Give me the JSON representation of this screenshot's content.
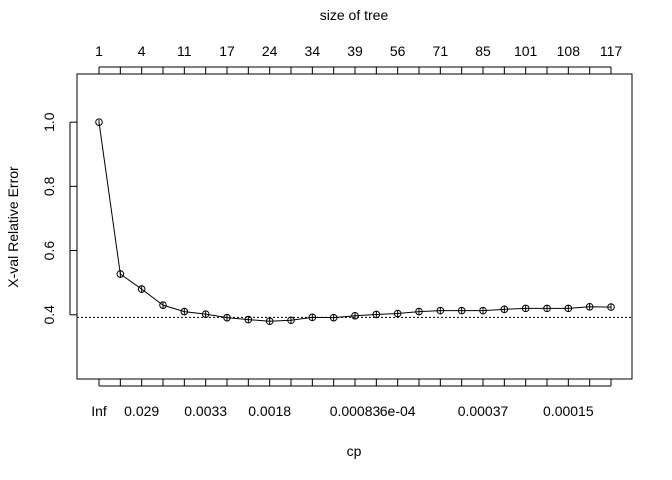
{
  "chart_data": {
    "type": "line",
    "title": "",
    "top_axis_label": "size of tree",
    "xlabel": "cp",
    "ylabel": "X-val Relative Error",
    "ylim": [
      0.2,
      1.15
    ],
    "y_ticks": [
      0.4,
      0.6,
      0.8,
      1.0
    ],
    "y_tick_labels": [
      "0.4",
      "0.6",
      "0.8",
      "1.0"
    ],
    "top_tick_labels": [
      "1",
      "4",
      "11",
      "17",
      "24",
      "34",
      "39",
      "56",
      "71",
      "85",
      "101",
      "108",
      "117"
    ],
    "bottom_tick_labels": [
      "Inf",
      "0.029",
      "0.0033",
      "0.0018",
      "0.00083",
      "6e-04",
      "0.00037",
      "0.00015"
    ],
    "reference_line": 0.392,
    "series": [
      {
        "name": "X-val Relative Error",
        "values": [
          1.0,
          0.527,
          0.48,
          0.43,
          0.41,
          0.402,
          0.391,
          0.385,
          0.38,
          0.383,
          0.392,
          0.391,
          0.397,
          0.401,
          0.404,
          0.41,
          0.413,
          0.413,
          0.413,
          0.417,
          0.42,
          0.42,
          0.42,
          0.425,
          0.424
        ],
        "errors": [
          0.007,
          0.012,
          0.012,
          0.011,
          0.01,
          0.01,
          0.01,
          0.01,
          0.01,
          0.01,
          0.01,
          0.01,
          0.01,
          0.01,
          0.01,
          0.01,
          0.01,
          0.01,
          0.01,
          0.01,
          0.01,
          0.01,
          0.01,
          0.01,
          0.01
        ]
      }
    ]
  }
}
